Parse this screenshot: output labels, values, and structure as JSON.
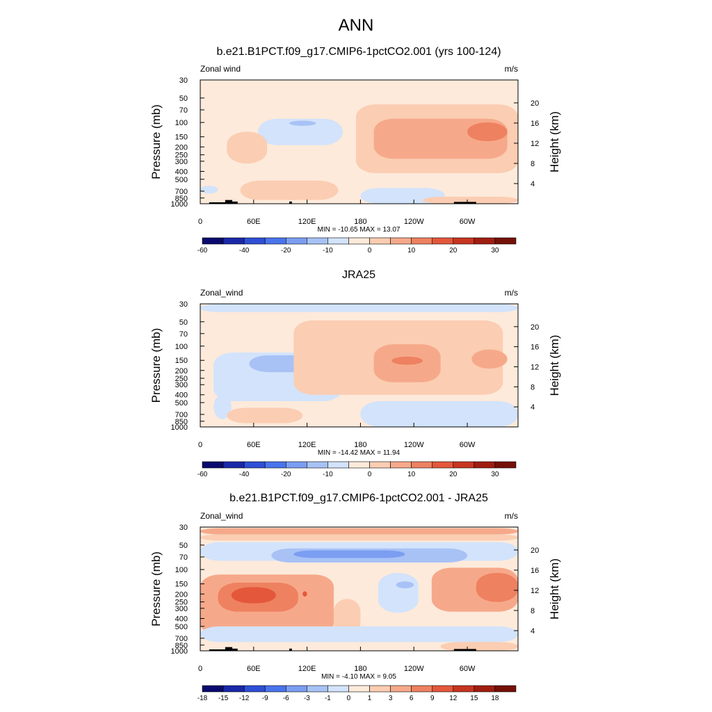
{
  "figure": {
    "title": "ANN"
  },
  "colors": {
    "wind_scale": [
      "#0a0a6e",
      "#1a28a8",
      "#2e4fd6",
      "#4a74ec",
      "#7b9ef2",
      "#a8c2f6",
      "#d2e3fb",
      "#fdeadb",
      "#fbcdb2",
      "#f6a98a",
      "#ee8160",
      "#e4573b",
      "#c73520",
      "#a01d10",
      "#741008"
    ],
    "diff_scale": [
      "#0a0a6e",
      "#1a28a8",
      "#2e4fd6",
      "#4a74ec",
      "#7b9ef2",
      "#a8c2f6",
      "#d2e3fb",
      "#fdeadb",
      "#fbcdb2",
      "#f6a98a",
      "#ee8160",
      "#e4573b",
      "#c73520",
      "#a01d10",
      "#741008"
    ],
    "topography": "#000000"
  },
  "chart_data": [
    {
      "type": "heatmap",
      "title": "b.e21.B1PCT.f09_g17.CMIP6-1pctCO2.001 (yrs 100-124)",
      "variable_label": "Zonal wind",
      "units": "m/s",
      "xlabel": "",
      "ylabel": "Pressure (mb)",
      "ylabel_right": "Height (km)",
      "x_ticks": [
        "0",
        "60E",
        "120E",
        "180",
        "120W",
        "60W"
      ],
      "x_tick_values": [
        0,
        60,
        120,
        180,
        240,
        300
      ],
      "x_range": [
        0,
        357
      ],
      "y_ticks": [
        "30",
        "50",
        "70",
        "100",
        "150",
        "200",
        "250",
        "300",
        "400",
        "500",
        "700",
        "850",
        "1000"
      ],
      "y_tick_values": [
        30,
        50,
        70,
        100,
        150,
        200,
        250,
        300,
        400,
        500,
        700,
        850,
        1000
      ],
      "y_range": [
        1000,
        30
      ],
      "y_scale": "log",
      "height_ticks": [
        "20",
        "16",
        "12",
        "8",
        "4"
      ],
      "height_tick_values": [
        20,
        16,
        12,
        8,
        4
      ],
      "stats": "MIN = -10.65  MAX =  13.07",
      "min": -10.65,
      "max": 13.07,
      "colorbar_labels": [
        "-60",
        "-40",
        "-20",
        "-10",
        "0",
        "10",
        "20",
        "30"
      ],
      "colorbar_levels": [
        -70,
        -60,
        -50,
        -40,
        -30,
        -20,
        -15,
        -10,
        -5,
        0,
        5,
        10,
        15,
        20,
        25,
        30
      ],
      "background_level": 7,
      "regions": [
        {
          "level": 6,
          "lon": [
            65,
            160
          ],
          "p": [
            90,
            190
          ]
        },
        {
          "level": 5,
          "lon": [
            100,
            130
          ],
          "p": [
            95,
            110
          ]
        },
        {
          "level": 6,
          "lon": [
            0,
            20
          ],
          "p": [
            600,
            750
          ]
        },
        {
          "level": 8,
          "lon": [
            175,
            357
          ],
          "p": [
            60,
            420
          ]
        },
        {
          "level": 9,
          "lon": [
            195,
            345
          ],
          "p": [
            90,
            280
          ]
        },
        {
          "level": 10,
          "lon": [
            300,
            345
          ],
          "p": [
            100,
            170
          ]
        },
        {
          "level": 8,
          "lon": [
            30,
            75
          ],
          "p": [
            130,
            320
          ]
        },
        {
          "level": 8,
          "lon": [
            45,
            155
          ],
          "p": [
            520,
            900
          ]
        },
        {
          "level": 6,
          "lon": [
            180,
            275
          ],
          "p": [
            640,
            1000
          ]
        },
        {
          "level": 8,
          "lon": [
            250,
            357
          ],
          "p": [
            820,
            1000
          ]
        }
      ],
      "topography": [
        {
          "lon": [
            10,
            35
          ],
          "p": [
            960,
            1000
          ]
        },
        {
          "lon": [
            28,
            36
          ],
          "p": [
            900,
            1000
          ]
        },
        {
          "lon": [
            35,
            42
          ],
          "p": [
            940,
            1000
          ]
        },
        {
          "lon": [
            100,
            103
          ],
          "p": [
            940,
            1000
          ]
        },
        {
          "lon": [
            285,
            310
          ],
          "p": [
            950,
            1000
          ]
        }
      ]
    },
    {
      "type": "heatmap",
      "title": "JRA25",
      "variable_label": "Zonal_wind",
      "units": "m/s",
      "xlabel": "",
      "ylabel": "Pressure (mb)",
      "ylabel_right": "Height (km)",
      "x_ticks": [
        "0",
        "60E",
        "120E",
        "180",
        "120W",
        "60W"
      ],
      "x_tick_values": [
        0,
        60,
        120,
        180,
        240,
        300
      ],
      "x_range": [
        0,
        357
      ],
      "y_ticks": [
        "30",
        "50",
        "70",
        "100",
        "150",
        "200",
        "250",
        "300",
        "400",
        "500",
        "700",
        "850",
        "1000"
      ],
      "y_tick_values": [
        30,
        50,
        70,
        100,
        150,
        200,
        250,
        300,
        400,
        500,
        700,
        850,
        1000
      ],
      "y_range": [
        1000,
        30
      ],
      "y_scale": "log",
      "height_ticks": [
        "20",
        "16",
        "12",
        "8",
        "4"
      ],
      "height_tick_values": [
        20,
        16,
        12,
        8,
        4
      ],
      "stats": "MIN = -14.42  MAX =  11.94",
      "min": -14.42,
      "max": 11.94,
      "colorbar_labels": [
        "-60",
        "-40",
        "-20",
        "-10",
        "0",
        "10",
        "20",
        "30"
      ],
      "colorbar_levels": [
        -70,
        -60,
        -50,
        -40,
        -30,
        -20,
        -15,
        -10,
        -5,
        0,
        5,
        10,
        15,
        20,
        25,
        30
      ],
      "background_level": 7,
      "regions": [
        {
          "level": 6,
          "lon": [
            0,
            357
          ],
          "p": [
            30,
            38
          ]
        },
        {
          "level": 6,
          "lon": [
            15,
            160
          ],
          "p": [
            120,
            480
          ]
        },
        {
          "level": 6,
          "lon": [
            15,
            35
          ],
          "p": [
            400,
            800
          ]
        },
        {
          "level": 5,
          "lon": [
            55,
            135
          ],
          "p": [
            130,
            210
          ]
        },
        {
          "level": 8,
          "lon": [
            105,
            340
          ],
          "p": [
            48,
            400
          ]
        },
        {
          "level": 9,
          "lon": [
            195,
            270
          ],
          "p": [
            95,
            280
          ]
        },
        {
          "level": 10,
          "lon": [
            215,
            250
          ],
          "p": [
            135,
            170
          ]
        },
        {
          "level": 9,
          "lon": [
            305,
            345
          ],
          "p": [
            110,
            190
          ]
        },
        {
          "level": 6,
          "lon": [
            180,
            357
          ],
          "p": [
            480,
            1000
          ]
        },
        {
          "level": 8,
          "lon": [
            30,
            115
          ],
          "p": [
            580,
            900
          ]
        }
      ],
      "topography": []
    },
    {
      "type": "heatmap",
      "title": "b.e21.B1PCT.f09_g17.CMIP6-1pctCO2.001 - JRA25",
      "variable_label": "Zonal_wind",
      "units": "m/s",
      "xlabel": "",
      "ylabel": "Pressure (mb)",
      "ylabel_right": "Height (km)",
      "x_ticks": [
        "0",
        "60E",
        "120E",
        "180",
        "120W",
        "60W"
      ],
      "x_tick_values": [
        0,
        60,
        120,
        180,
        240,
        300
      ],
      "x_range": [
        0,
        357
      ],
      "y_ticks": [
        "30",
        "50",
        "70",
        "100",
        "150",
        "200",
        "250",
        "300",
        "400",
        "500",
        "700",
        "850",
        "1000"
      ],
      "y_tick_values": [
        30,
        50,
        70,
        100,
        150,
        200,
        250,
        300,
        400,
        500,
        700,
        850,
        1000
      ],
      "y_range": [
        1000,
        30
      ],
      "y_scale": "log",
      "height_ticks": [
        "20",
        "16",
        "12",
        "8",
        "4"
      ],
      "height_tick_values": [
        20,
        16,
        12,
        8,
        4
      ],
      "stats": "MIN = -4.10  MAX =  9.05",
      "min": -4.1,
      "max": 9.05,
      "colorbar_labels": [
        "-18",
        "-15",
        "-12",
        "-9",
        "-6",
        "-3",
        "-1",
        "0",
        "1",
        "3",
        "6",
        "9",
        "12",
        "15",
        "18"
      ],
      "colorbar_levels": [
        -21,
        -18,
        -15,
        -12,
        -9,
        -6,
        -3,
        -1,
        0,
        1,
        3,
        6,
        9,
        12,
        15,
        18,
        21
      ],
      "background_level": 7,
      "regions": [
        {
          "level": 9,
          "lon": [
            0,
            357
          ],
          "p": [
            31,
            37
          ]
        },
        {
          "level": 8,
          "lon": [
            0,
            357
          ],
          "p": [
            37,
            44
          ]
        },
        {
          "level": 6,
          "lon": [
            0,
            357
          ],
          "p": [
            46,
            78
          ]
        },
        {
          "level": 5,
          "lon": [
            80,
            300
          ],
          "p": [
            55,
            82
          ]
        },
        {
          "level": 4,
          "lon": [
            105,
            230
          ],
          "p": [
            58,
            72
          ]
        },
        {
          "level": 9,
          "lon": [
            0,
            150
          ],
          "p": [
            115,
            650
          ]
        },
        {
          "level": 10,
          "lon": [
            20,
            110
          ],
          "p": [
            145,
            330
          ]
        },
        {
          "level": 11,
          "lon": [
            35,
            85
          ],
          "p": [
            165,
            260
          ]
        },
        {
          "level": 11,
          "lon": [
            115,
            120
          ],
          "p": [
            185,
            215
          ]
        },
        {
          "level": 8,
          "lon": [
            150,
            180
          ],
          "p": [
            230,
            650
          ]
        },
        {
          "level": 6,
          "lon": [
            200,
            245
          ],
          "p": [
            110,
            340
          ]
        },
        {
          "level": 5,
          "lon": [
            220,
            240
          ],
          "p": [
            140,
            170
          ]
        },
        {
          "level": 9,
          "lon": [
            260,
            357
          ],
          "p": [
            95,
            330
          ]
        },
        {
          "level": 10,
          "lon": [
            310,
            357
          ],
          "p": [
            110,
            250
          ]
        },
        {
          "level": 6,
          "lon": [
            0,
            357
          ],
          "p": [
            500,
            780
          ]
        },
        {
          "level": 8,
          "lon": [
            270,
            357
          ],
          "p": [
            780,
            1000
          ]
        }
      ],
      "topography": [
        {
          "lon": [
            10,
            35
          ],
          "p": [
            960,
            1000
          ]
        },
        {
          "lon": [
            28,
            36
          ],
          "p": [
            900,
            1000
          ]
        },
        {
          "lon": [
            35,
            42
          ],
          "p": [
            940,
            1000
          ]
        },
        {
          "lon": [
            100,
            103
          ],
          "p": [
            940,
            1000
          ]
        },
        {
          "lon": [
            285,
            310
          ],
          "p": [
            950,
            1000
          ]
        }
      ]
    }
  ]
}
